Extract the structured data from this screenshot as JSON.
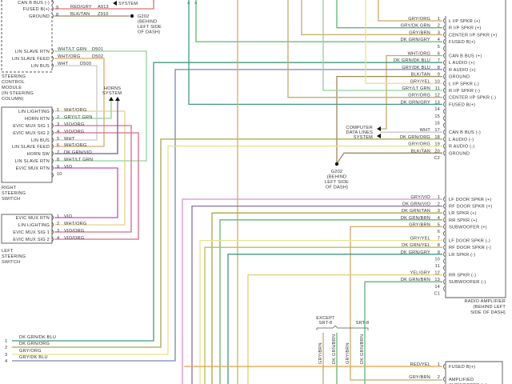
{
  "steering_control_module": {
    "title_lines": [
      "STEERING",
      "CONTROL",
      "MODULE",
      "(IN STEERING",
      "COLUMN)"
    ],
    "pins": [
      {
        "label": "CAN B BUS (-)",
        "pin": "",
        "wire": "",
        "circuit": ""
      },
      {
        "label": "FUSED B(+)",
        "pin": "9",
        "wire": "RED/GRY",
        "circuit": "A913"
      },
      {
        "label": "GROUND",
        "pin": "8",
        "wire": "BLK/TAN",
        "circuit": "Z910"
      },
      {
        "label": "LIN SLAVE RTN",
        "pin": "",
        "wire": "WHT/LT GRN",
        "circuit": "D501"
      },
      {
        "label": "LIN SLAVE FEED",
        "pin": "",
        "wire": "WHT/ORG",
        "circuit": "D502"
      },
      {
        "label": "LIN BUS",
        "pin": "",
        "wire": "WHT",
        "circuit": "D500"
      }
    ],
    "system_label": "SYSTEM"
  },
  "ground_top": {
    "lines": [
      "G202",
      "(BEHIND",
      "LEFT SIDE",
      "OF DASH)"
    ]
  },
  "horns": {
    "lines": [
      "HORNS",
      "SYSTEM"
    ]
  },
  "right_steering_switch": {
    "title_lines": [
      "RIGHT",
      "STEERING",
      "SWITCH"
    ],
    "pins": [
      {
        "label": "LIN LIGHTING",
        "pin": "1",
        "wire": "WHT/ORG"
      },
      {
        "label": "HORN RTN",
        "pin": "2",
        "wire": "GRY/LT GRN"
      },
      {
        "label": "EVIC MUX SIG 1",
        "pin": "3",
        "wire": "VIO/ORG"
      },
      {
        "label": "EVIC MUX SIG 2",
        "pin": "4",
        "wire": "VIO/ORG"
      },
      {
        "label": "LIN BUS",
        "pin": "5",
        "wire": "WHT"
      },
      {
        "label": "LIN SLAVE FEED",
        "pin": "6",
        "wire": "WHT/ORG"
      },
      {
        "label": "HORN SW",
        "pin": "7",
        "wire": "DK GRN/VIO"
      },
      {
        "label": "LIN SLAVE RTN",
        "pin": "8",
        "wire": "WHT/LT GRN"
      },
      {
        "label": "EVIC MUX RTN",
        "pin": "9",
        "wire": "VIO"
      },
      {
        "label": "",
        "pin": "10",
        "wire": ""
      }
    ]
  },
  "left_steering_switch": {
    "title_lines": [
      "LEFT",
      "STEERING",
      "SWITCH"
    ],
    "pins": [
      {
        "label": "EVIC MUX RTN",
        "pin": "1",
        "wire": "VIO"
      },
      {
        "label": "LIN LIGHTING",
        "pin": "2",
        "wire": "WHT/ORG"
      },
      {
        "label": "EVIC MUX SIG 1",
        "pin": "3",
        "wire": "VIO/ORG"
      },
      {
        "label": "EVIC MUX SIG 2",
        "pin": "4",
        "wire": "VIO/ORG"
      }
    ]
  },
  "bottom_left_connector": {
    "pins": [
      {
        "pin": "1",
        "wire": "DK GRN/DK BLU"
      },
      {
        "pin": "2",
        "wire": "DK GRN/ORG"
      },
      {
        "pin": "3",
        "wire": "GRY/ORG"
      },
      {
        "pin": "4",
        "wire": "GRY/DK BLU"
      }
    ]
  },
  "radio_amplifier": {
    "title_lines": [
      "RADIO AMPLIFIER",
      "(BEHIND LEFT",
      "SIDE OF DASH)"
    ],
    "c2": {
      "name": "C2",
      "pins": [
        {
          "pin": "1",
          "wire": "GRY/ORG",
          "label": "L I/P SPKR (+)"
        },
        {
          "pin": "2",
          "wire": "GRY/DK GRN",
          "label": "R I/P SPKR (+)"
        },
        {
          "pin": "3",
          "wire": "GRY/BRN",
          "label": "CENTER I/P SPKR (+)"
        },
        {
          "pin": "4",
          "wire": "DK GRN/GRY",
          "label": "FUSED B(+)"
        },
        {
          "pin": "5",
          "wire": "",
          "label": ""
        },
        {
          "pin": "6",
          "wire": "WHT/ORG",
          "label": "CAN B BUS (+)"
        },
        {
          "pin": "7",
          "wire": "DK GRN/DK BLU",
          "label": "L AUDIO (+)"
        },
        {
          "pin": "8",
          "wire": "GRY/DK BLU",
          "label": "R AUDIO (+)"
        },
        {
          "pin": "9",
          "wire": "BLK/TAN",
          "label": "GROUND"
        },
        {
          "pin": "10",
          "wire": "GRY/YEL",
          "label": "L I/P SPKR (-)"
        },
        {
          "pin": "11",
          "wire": "GRY/LT GRN",
          "label": "R I/P SPKR (-)"
        },
        {
          "pin": "12",
          "wire": "GRY/ORG",
          "label": "CENTER I/P SPKR (-)"
        },
        {
          "pin": "13",
          "wire": "DK GRN/GRY",
          "label": "FUSED B(+)"
        },
        {
          "pin": "14",
          "wire": "",
          "label": ""
        },
        {
          "pin": "15",
          "wire": "",
          "label": ""
        },
        {
          "pin": "16",
          "wire": "",
          "label": ""
        },
        {
          "pin": "17",
          "wire": "WHT",
          "label": "CAN B BUS (-)"
        },
        {
          "pin": "18",
          "wire": "DK GRN/ORG",
          "label": "L AUDIO (-)"
        },
        {
          "pin": "19",
          "wire": "GRY/ORG",
          "label": "R AUDIO (-)"
        },
        {
          "pin": "20",
          "wire": "BLK/TAN",
          "label": "GROUND"
        }
      ]
    },
    "c1": {
      "name": "C1",
      "pins": [
        {
          "pin": "1",
          "wire": "GRY/VIO",
          "label": "LF DOOR SPKR (+)"
        },
        {
          "pin": "2",
          "wire": "DK GRN/VIO",
          "label": "RF DOOR SPKR (+)"
        },
        {
          "pin": "3",
          "wire": "DK GRN/TAN",
          "label": "LR SPKR (+)"
        },
        {
          "pin": "4",
          "wire": "DK GRN/BRN",
          "label": "RR SPKR (+)"
        },
        {
          "pin": "5",
          "wire": "GRY/BRN",
          "label": "SUBWOOFER (+)"
        },
        {
          "pin": "6",
          "wire": "",
          "label": ""
        },
        {
          "pin": "7",
          "wire": "GRY/YEL",
          "label": "LF DOOR SPKR (-)"
        },
        {
          "pin": "8",
          "wire": "DK GRN/YEL",
          "label": "RF DOOR SPKR (-)"
        },
        {
          "pin": "9",
          "wire": "DK GRN/GRY",
          "label": "LR SPKR (-)"
        },
        {
          "pin": "10",
          "wire": "",
          "label": ""
        },
        {
          "pin": "11",
          "wire": "",
          "label": ""
        },
        {
          "pin": "12",
          "wire": "YEL/GRY",
          "label": "RR SPKR (-)"
        },
        {
          "pin": "13",
          "wire": "DK GRN/BRN",
          "label": "SUBWOOFER (-)"
        },
        {
          "pin": "14",
          "wire": "",
          "label": ""
        }
      ]
    }
  },
  "computer_data_lines": {
    "lines": [
      "COMPUTER",
      "DATA LINES",
      "SYSTEM"
    ]
  },
  "ground_mid": {
    "lines": [
      "G202",
      "(BEHIND",
      "LEFT SIDE",
      "OF DASH)"
    ]
  },
  "variants": {
    "except_srt8": [
      "EXCEPT",
      "SRT-8"
    ],
    "srt8": "SRT-8",
    "vertical_wires": [
      "GRY/BRN",
      "DK GRN/BRN",
      "GRY/BRN",
      "DK GRN/BRN"
    ]
  },
  "subwoofer": {
    "pins": [
      {
        "pin": "1",
        "wire": "RED/YEL",
        "label": "FUSED B(+)"
      },
      {
        "pin": "2",
        "wire": "GRY/BRN",
        "label": "AMPLIFIED"
      }
    ],
    "label_line2": "SUBWOOFER (+)"
  },
  "colors": {
    "red": "#e07070",
    "orange": "#e0a868",
    "lightgreen": "#8fd39a",
    "teal": "#3f9a80",
    "green": "#5cb872",
    "blue": "#7a84b8",
    "violet": "#c04cc8",
    "pink": "#d86a8a",
    "olive": "#a4a846",
    "yellow": "#e6e48a",
    "tan": "#c8a868",
    "gray": "#c8c8cc",
    "brown": "#a08858",
    "redyel": "#e8a040",
    "gryvio": "#d490d8"
  }
}
